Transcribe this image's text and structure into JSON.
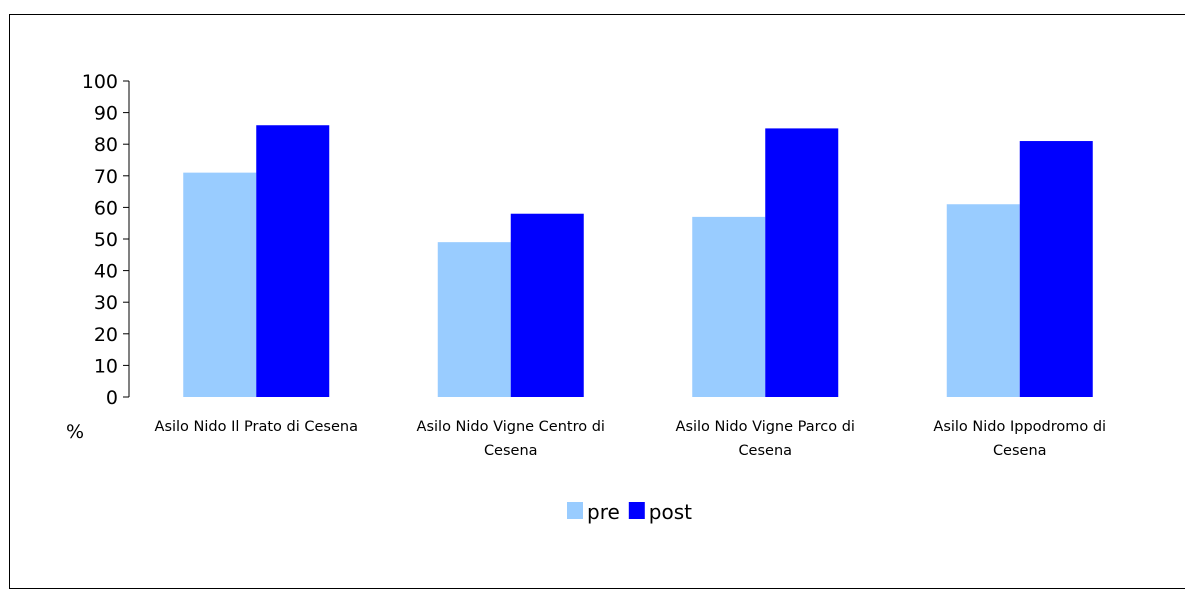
{
  "chart_data": {
    "type": "bar",
    "title": "",
    "xlabel": "",
    "ylabel": "%",
    "ylim": [
      0,
      100
    ],
    "yticks": [
      0,
      10,
      20,
      30,
      40,
      50,
      60,
      70,
      80,
      90,
      100
    ],
    "categories": [
      [
        "Asilo Nido Il Prato di Cesena"
      ],
      [
        "Asilo Nido Vigne Centro di",
        "Cesena"
      ],
      [
        "Asilo Nido Vigne Parco di",
        "Cesena"
      ],
      [
        "Asilo Nido Ippodromo di",
        "Cesena"
      ]
    ],
    "series": [
      {
        "name": "pre",
        "color": "#99ccff",
        "values": [
          71,
          49,
          57,
          61
        ]
      },
      {
        "name": "post",
        "color": "#0000ff",
        "values": [
          86,
          58,
          85,
          81
        ]
      }
    ],
    "grid": false,
    "legend_position": "bottom"
  }
}
